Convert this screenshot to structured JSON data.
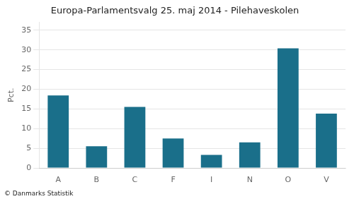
{
  "chart_data": {
    "type": "bar",
    "title": "Europa-Parlamentsvalg 25. maj 2014 - Pilehaveskolen",
    "ylabel": "Pct.",
    "annotations": [
      "© Danmarks Statistik"
    ],
    "categories": [
      "A",
      "B",
      "C",
      "F",
      "I",
      "N",
      "O",
      "V"
    ],
    "values": [
      18.4,
      5.5,
      15.5,
      7.5,
      3.3,
      6.5,
      30.4,
      13.8
    ],
    "color": "#1a6f8a",
    "ylim": [
      0,
      37
    ],
    "yticks": [
      0,
      5,
      10,
      15,
      20,
      25,
      30,
      35
    ],
    "grid": true
  }
}
